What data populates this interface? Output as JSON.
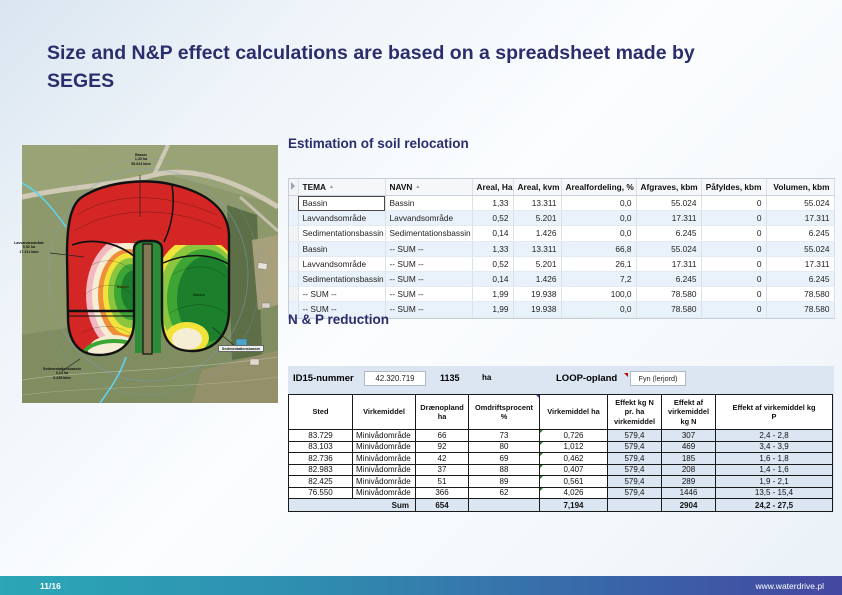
{
  "slide": {
    "title": "Size and N&P effect calculations are based on a spreadsheet made by SEGES",
    "page_number": "11/16",
    "website": "www.waterdrive.pl"
  },
  "sections": {
    "soil_heading": "Estimation of soil relocation",
    "np_heading": "N & P reduction"
  },
  "soil_table": {
    "columns": [
      "TEMA",
      "NAVN",
      "Areal, Ha",
      "Areal, kvm",
      "Arealfordeling, %",
      "Afgraves, kbm",
      "Påfyldes, kbm",
      "Volumen, kbm"
    ],
    "sorted_columns": [
      "TEMA",
      "NAVN"
    ],
    "rows": [
      [
        "Bassin",
        "Bassin",
        "1,33",
        "13.311",
        "0,0",
        "55.024",
        "0",
        "55.024"
      ],
      [
        "Lavvandsområde",
        "Lavvandsområde",
        "0,52",
        "5.201",
        "0,0",
        "17.311",
        "0",
        "17.311"
      ],
      [
        "Sedimentationsbassin",
        "Sedimentationsbassin",
        "0,14",
        "1.426",
        "0,0",
        "6.245",
        "0",
        "6.245"
      ],
      [
        "Bassin",
        "-- SUM --",
        "1,33",
        "13.311",
        "66,8",
        "55.024",
        "0",
        "55.024"
      ],
      [
        "Lavvandsområde",
        "-- SUM --",
        "0,52",
        "5.201",
        "26,1",
        "17.311",
        "0",
        "17.311"
      ],
      [
        "Sedimentationsbassin",
        "-- SUM --",
        "0,14",
        "1.426",
        "7,2",
        "6.245",
        "0",
        "6.245"
      ],
      [
        "-- SUM --",
        "-- SUM --",
        "1,99",
        "19.938",
        "100,0",
        "78.580",
        "0",
        "78.580"
      ],
      [
        "-- SUM --",
        "-- SUM --",
        "1,99",
        "19.938",
        "0,0",
        "78.580",
        "0",
        "78.580"
      ]
    ]
  },
  "np_header": {
    "id15_label": "ID15-nummer",
    "id15_value": "42.320.719",
    "area_value": "1135",
    "area_unit": "ha",
    "loop_label": "LOOP-opland",
    "loop_value": "Fyn (lerjord)"
  },
  "np_table": {
    "columns": [
      "Sted",
      "Virkemiddel",
      "Drænopland\nha",
      "Omdriftsprocent\n%",
      "Virkemiddel ha",
      "Effekt kg N\npr. ha\nvirkemiddel",
      "Effekt af\nvirkemiddel\nkg N",
      "Effekt af virkemiddel kg\nP"
    ],
    "rows": [
      [
        "83.729",
        "Minivådområde",
        "66",
        "73",
        "0,726",
        "579,4",
        "307",
        "2,4  -  2,8"
      ],
      [
        "83.103",
        "Minivådområde",
        "92",
        "80",
        "1,012",
        "579,4",
        "469",
        "3,4  -  3,9"
      ],
      [
        "82.736",
        "Minivådområde",
        "42",
        "69",
        "0,462",
        "579,4",
        "185",
        "1,6  -  1,8"
      ],
      [
        "82.983",
        "Minivådområde",
        "37",
        "88",
        "0,407",
        "579,4",
        "208",
        "1,4  -  1,6"
      ],
      [
        "82.425",
        "Minivådområde",
        "51",
        "89",
        "0,561",
        "579,4",
        "289",
        "1,9  -  2,1"
      ],
      [
        "76.550",
        "Minivådområde",
        "366",
        "62",
        "4,026",
        "579,4",
        "1446",
        "13,5  -  15,4"
      ]
    ],
    "sum": {
      "label": "Sum",
      "draenopland": "654",
      "virkemiddel_ha": "7,194",
      "effekt_n": "2904",
      "effekt_p": "24,2  -  27,5"
    }
  },
  "map": {
    "description": "aerial-photo-with-soil-contour-overlay",
    "labels": [
      {
        "id": "top",
        "lines": "Bassin\n1,33 ha\n55.024 kbm"
      },
      {
        "id": "left",
        "lines": "Lavvandsområde\n0,52 ha\n17.311 kbm"
      },
      {
        "id": "left-lobe",
        "lines": "Bassin"
      },
      {
        "id": "right-lobe",
        "lines": "Bassin"
      },
      {
        "id": "bottom-left",
        "lines": "Sedimentationsbassin\n0,14 ha\n6.245 kbm"
      },
      {
        "id": "right-box",
        "lines": "Sedimentationsbassin"
      }
    ]
  },
  "colors": {
    "heading": "#2b2e6d",
    "panel_blue": "#dbe6f2",
    "footer_teal": "#2ba7b7",
    "footer_purple": "#4547a0",
    "overlay_red": "#d42625",
    "overlay_green": "#1c7f2c"
  }
}
